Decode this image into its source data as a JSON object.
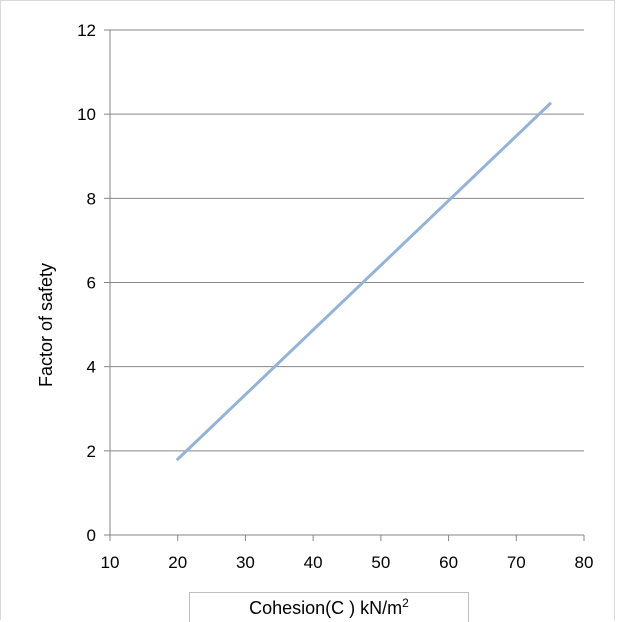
{
  "chart_data": {
    "type": "line",
    "title": "",
    "xlabel": "Cohesion(C ) kN/m",
    "xlabel_sup": "2",
    "ylabel": "Factor of safety",
    "xlim": [
      10,
      80
    ],
    "ylim": [
      0,
      12
    ],
    "xticks": [
      10,
      20,
      30,
      40,
      50,
      60,
      70,
      80
    ],
    "yticks": [
      0,
      2,
      4,
      6,
      8,
      10,
      12
    ],
    "grid": "horizontal",
    "legend": "none",
    "series": [
      {
        "color": "#95b3d7",
        "x": [
          20,
          75
        ],
        "y": [
          1.8,
          10.25
        ]
      }
    ]
  }
}
